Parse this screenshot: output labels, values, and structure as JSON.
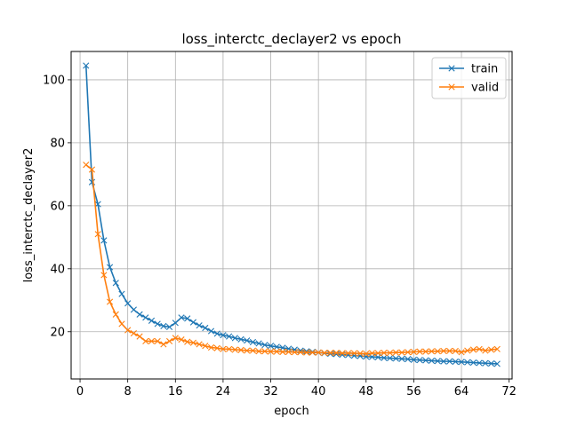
{
  "chart_data": {
    "type": "line",
    "title": "loss_interctc_declayer2 vs epoch",
    "xlabel": "epoch",
    "ylabel": "loss_interctc_declayer2",
    "xlim": [
      -1.5,
      72.5
    ],
    "ylim": [
      5,
      109
    ],
    "xticks": [
      0,
      8,
      16,
      24,
      32,
      40,
      48,
      56,
      64,
      72
    ],
    "yticks": [
      20,
      40,
      60,
      80,
      100
    ],
    "grid": true,
    "legend_position": "top-right",
    "marker": "x",
    "x": [
      1,
      2,
      3,
      4,
      5,
      6,
      7,
      8,
      9,
      10,
      11,
      12,
      13,
      14,
      15,
      16,
      17,
      18,
      19,
      20,
      21,
      22,
      23,
      24,
      25,
      26,
      27,
      28,
      29,
      30,
      31,
      32,
      33,
      34,
      35,
      36,
      37,
      38,
      39,
      40,
      41,
      42,
      43,
      44,
      45,
      46,
      47,
      48,
      49,
      50,
      51,
      52,
      53,
      54,
      55,
      56,
      57,
      58,
      59,
      60,
      61,
      62,
      63,
      64,
      65,
      66,
      67,
      68,
      69,
      70
    ],
    "series": [
      {
        "name": "train",
        "color": "#1f77b4",
        "values": [
          104.5,
          67.5,
          60.5,
          49.0,
          40.5,
          35.5,
          32.0,
          29.0,
          27.0,
          25.5,
          24.5,
          23.5,
          22.5,
          21.8,
          21.5,
          22.8,
          24.5,
          24.2,
          23.0,
          22.0,
          21.2,
          20.2,
          19.4,
          18.9,
          18.5,
          18.0,
          17.6,
          17.2,
          16.7,
          16.3,
          15.8,
          15.5,
          15.2,
          14.9,
          14.6,
          14.3,
          14.0,
          13.8,
          13.6,
          13.4,
          13.2,
          13.0,
          12.9,
          12.7,
          12.6,
          12.4,
          12.3,
          12.1,
          12.0,
          11.9,
          11.7,
          11.6,
          11.5,
          11.4,
          11.3,
          11.1,
          11.0,
          10.9,
          10.8,
          10.7,
          10.6,
          10.6,
          10.5,
          10.4,
          10.3,
          10.2,
          10.1,
          10.0,
          9.9,
          9.8
        ]
      },
      {
        "name": "valid",
        "color": "#ff7f0e",
        "values": [
          73.0,
          71.5,
          51.0,
          38.0,
          29.5,
          25.5,
          22.5,
          20.5,
          19.5,
          18.5,
          17.0,
          17.0,
          17.0,
          16.0,
          17.0,
          18.0,
          17.5,
          16.8,
          16.5,
          16.0,
          15.5,
          15.0,
          14.8,
          14.5,
          14.5,
          14.3,
          14.2,
          14.0,
          14.0,
          13.8,
          13.8,
          13.7,
          13.7,
          13.6,
          13.6,
          13.5,
          13.5,
          13.4,
          13.4,
          13.4,
          13.3,
          13.3,
          13.3,
          13.2,
          13.2,
          13.2,
          13.1,
          13.0,
          13.2,
          13.2,
          13.3,
          13.3,
          13.4,
          13.4,
          13.5,
          13.6,
          13.7,
          13.7,
          13.8,
          13.8,
          13.9,
          13.9,
          13.9,
          13.5,
          14.0,
          14.3,
          14.5,
          14.0,
          14.3,
          14.5
        ]
      }
    ]
  }
}
